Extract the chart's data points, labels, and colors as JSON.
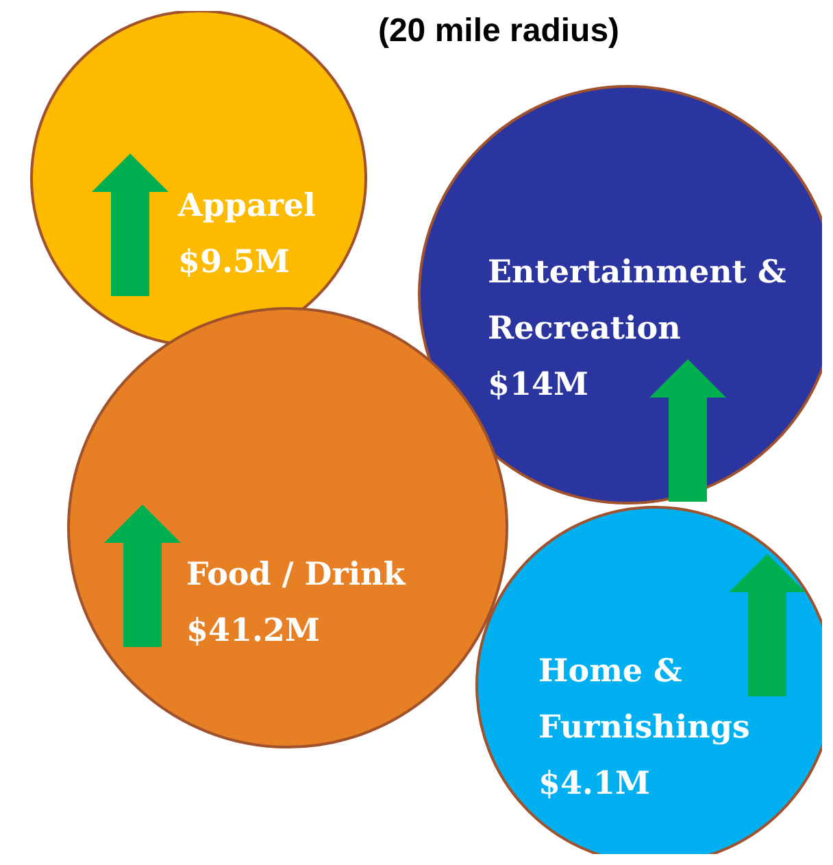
{
  "chart_data": {
    "type": "other",
    "title": "(20 mile radius)",
    "categories": [
      "Apparel",
      "Entertainment & Recreation",
      "Food / Drink",
      "Home & Furnishings"
    ],
    "values": [
      9.5,
      14,
      41.2,
      4.1
    ],
    "value_labels": [
      "$9.5M",
      "$14M",
      "$41.2M",
      "$4.1M"
    ],
    "colors": [
      "#fdbb00",
      "#2b35a0",
      "#e77f24",
      "#00b0f0"
    ]
  }
}
